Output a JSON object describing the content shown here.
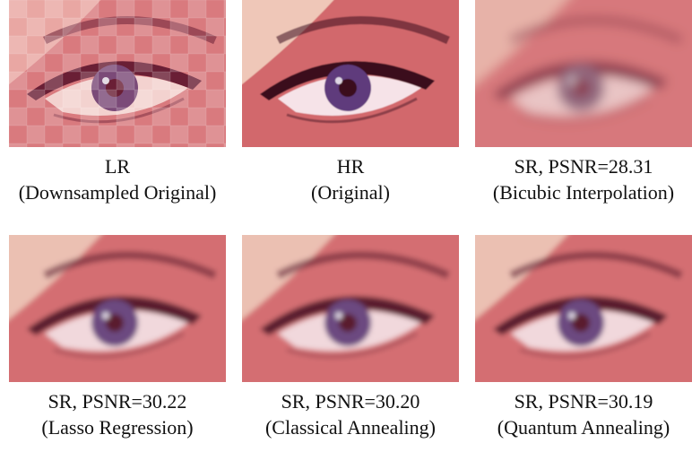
{
  "panels": [
    {
      "line1": "LR",
      "line2": "(Downsampled Original)",
      "style": "pixelated",
      "colors": {
        "skin": "#d97a7e",
        "lid": "#e9a7a3",
        "lash": "#6a1f35",
        "iris": "#7b4a78",
        "highlight": "#f3d2cf"
      }
    },
    {
      "line1": "HR",
      "line2": "(Original)",
      "style": "sharp",
      "colors": {
        "skin": "#d2686c",
        "lid": "#efc7b8",
        "lash": "#3a0d1e",
        "iris": "#5e3a7c",
        "highlight": "#f6e3e8"
      }
    },
    {
      "line1": "SR, PSNR=28.31",
      "line2": "(Bicubic Interpolation)",
      "style": "blurry",
      "colors": {
        "skin": "#d7787b",
        "lid": "#e7b2a8",
        "lash": "#8a3a4d",
        "iris": "#93697f",
        "highlight": "#e9c4c4"
      }
    },
    {
      "line1": "SR, PSNR=30.22",
      "line2": "(Lasso Regression)",
      "style": "soft",
      "colors": {
        "skin": "#d46e72",
        "lid": "#ebc0b2",
        "lash": "#5a1a2e",
        "iris": "#6c4880",
        "highlight": "#f1d8dc"
      }
    },
    {
      "line1": "SR, PSNR=30.20",
      "line2": "(Classical Annealing)",
      "style": "soft",
      "colors": {
        "skin": "#d46e72",
        "lid": "#ebc0b2",
        "lash": "#5a1a2e",
        "iris": "#6c4880",
        "highlight": "#f1d8dc"
      }
    },
    {
      "line1": "SR, PSNR=30.19",
      "line2": "(Quantum Annealing)",
      "style": "soft",
      "colors": {
        "skin": "#d46e72",
        "lid": "#ebc0b2",
        "lash": "#5a1a2e",
        "iris": "#6c4880",
        "highlight": "#f1d8dc"
      }
    }
  ]
}
